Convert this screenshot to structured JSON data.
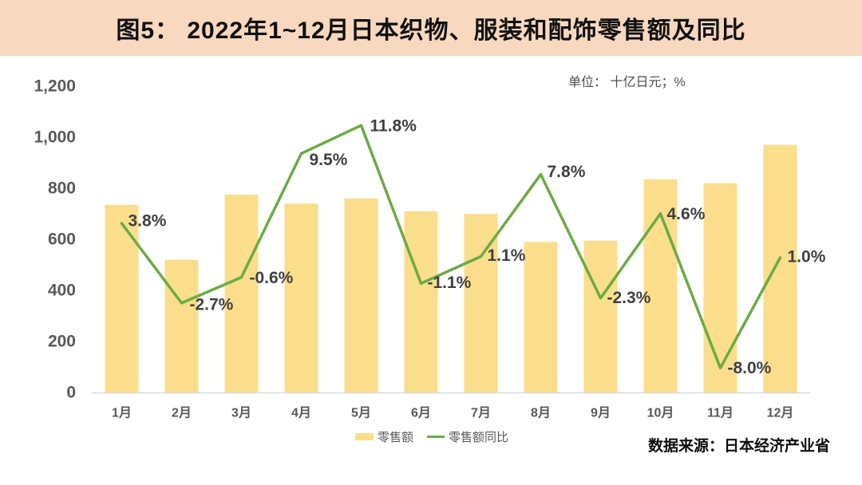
{
  "header": {
    "title": "图5： 2022年1~12月日本织物、服装和配饰零售额及同比"
  },
  "unit_label": "单位： 十亿日元；%",
  "source": "数据来源：日本经济产业省",
  "legend": {
    "bar_label": "零售额",
    "line_label": "零售额同比"
  },
  "colors": {
    "header_bg": "#F8D8BE",
    "bar": "#FADE8C",
    "line": "#6BAB44",
    "axis_line": "#D9D9D9",
    "axis_text": "#595959",
    "data_label_text": "#404040",
    "title_text": "#111111"
  },
  "chart_data": {
    "type": "bar",
    "subtype": "bar+line combo, line on secondary percent axis",
    "title": "图5： 2022年1~12月日本织物、服装和配饰零售额及同比",
    "categories": [
      "1月",
      "2月",
      "3月",
      "4月",
      "5月",
      "6月",
      "7月",
      "8月",
      "9月",
      "10月",
      "11月",
      "12月"
    ],
    "series": [
      {
        "name": "零售额",
        "type": "bar",
        "axis": "primary",
        "values": [
          735,
          520,
          775,
          740,
          760,
          710,
          700,
          590,
          595,
          835,
          820,
          970
        ]
      },
      {
        "name": "零售额同比",
        "type": "line",
        "axis": "secondary",
        "unit": "%",
        "values": [
          3.8,
          -2.7,
          -0.6,
          9.5,
          11.8,
          -1.1,
          1.1,
          7.8,
          -2.3,
          4.6,
          -8.0,
          1.0
        ],
        "labels": [
          "3.8%",
          "-2.7%",
          "-0.6%",
          "9.5%",
          "11.8%",
          "-1.1%",
          "1.1%",
          "7.8%",
          "-2.3%",
          "4.6%",
          "-8.0%",
          "1.0%"
        ],
        "label_offsets": [
          [
            8,
            -3
          ],
          [
            10,
            2
          ],
          [
            10,
            1
          ],
          [
            10,
            8
          ],
          [
            11,
            1
          ],
          [
            8,
            -1
          ],
          [
            8,
            -1
          ],
          [
            8,
            -3
          ],
          [
            8,
            0
          ],
          [
            8,
            1
          ],
          [
            9,
            0
          ],
          [
            9,
            -1
          ]
        ]
      }
    ],
    "y_axis": {
      "min": 0,
      "max": 1200,
      "ticks": [
        "1,200",
        "1,000",
        "800",
        "600",
        "400",
        "200",
        "0"
      ]
    },
    "y2_axis": {
      "min": -10,
      "max": 15,
      "visible": false
    },
    "grid": false,
    "legend_position": "bottom",
    "xlabel": "",
    "ylabel": ""
  }
}
